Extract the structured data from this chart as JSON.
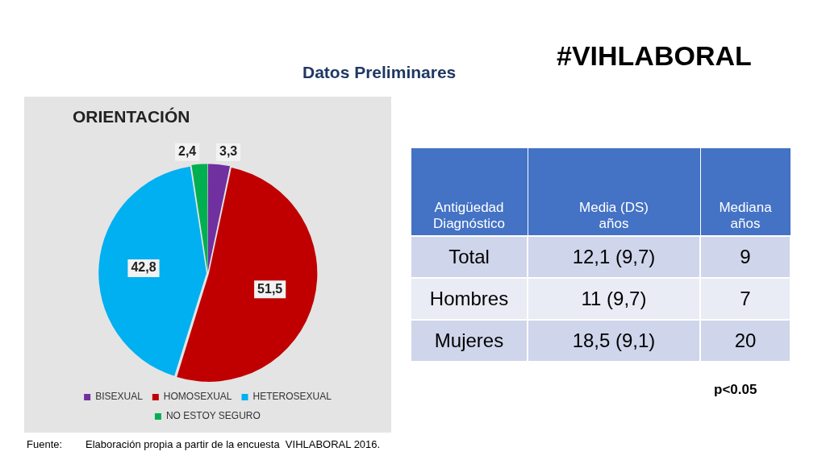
{
  "chart_data": [
    {
      "type": "pie",
      "title": "ORIENTACIÓN",
      "categories": [
        "BISEXUAL",
        "HOMOSEXUAL",
        "HETEROSEXUAL",
        "NO ESTOY SEGURO"
      ],
      "values": [
        3.3,
        51.5,
        42.8,
        2.4
      ],
      "value_labels": [
        "3,3",
        "51,5",
        "42,8",
        "2,4"
      ],
      "colors": [
        "#7030a0",
        "#c00000",
        "#00b0f0",
        "#00b050"
      ],
      "legend": "bottom",
      "annotations": [
        "Fuente:        Elaboración propia a partir de la encuesta  VIHLABORAL 2016."
      ]
    },
    {
      "type": "other",
      "title": "#VIHLABORAL",
      "subtitle": "Datos Preliminares",
      "categories": [
        "Antigüedad\nDiagnóstico",
        "Media (DS)\naños",
        "Mediana\naños"
      ],
      "cell_labels": [
        [
          "Total",
          "12,1 (9,7)",
          "9"
        ],
        [
          "Hombres",
          "11 (9,7)",
          "7"
        ],
        [
          "Mujeres",
          "18,5 (9,1)",
          "20"
        ]
      ],
      "annotations": [
        "p<0.05"
      ]
    }
  ]
}
